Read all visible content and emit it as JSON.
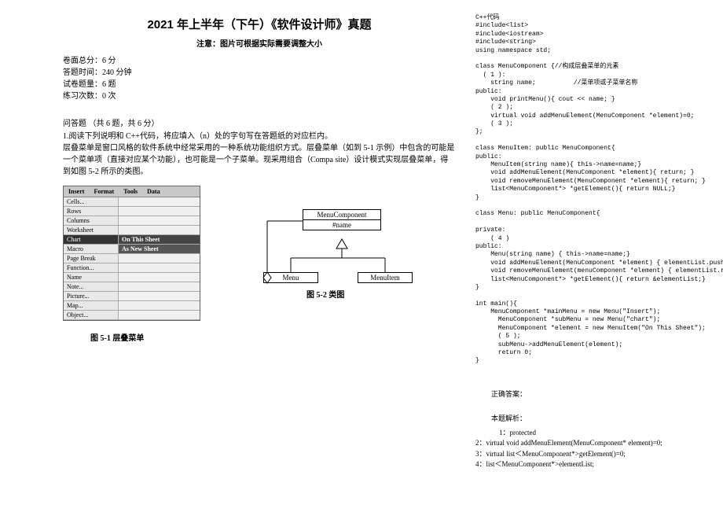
{
  "header": {
    "title": "2021 年上半年（下午）《软件设计师》真题",
    "subtitle": "注意：图片可根据实际需要调整大小"
  },
  "meta": {
    "total_score": "卷面总分：6 分",
    "time": "答题时间：240 分钟",
    "count": "试卷题量：6 题",
    "practice": "练习次数：0 次"
  },
  "question": {
    "heading": "问答题 （共 6 题，共 6 分）",
    "line1": "1.阅读下列说明和 C++代码，将应填入（n）处的字句写在答题纸的对应栏内。",
    "line2": "层叠菜单是窗口风格的软件系统中经常采用的一种系统功能组织方式。层叠菜单（如到 5-1 示例）中包含的可能是一个菜单项（直接对应某个功能），也可能是一个子菜单。现采用组合（Compa site）设计模式实现层叠菜单，得到如图 5-2 所示的类图。"
  },
  "menuWindow": {
    "menubar": [
      "Insert",
      "Format",
      "Tools",
      "Data"
    ],
    "rows": [
      {
        "left": "Cells...",
        "right": ""
      },
      {
        "left": "Rows",
        "right": ""
      },
      {
        "left": "Columns",
        "right": ""
      },
      {
        "left": "Worksheet",
        "right": ""
      },
      {
        "left": "Chart",
        "right": "On This Sheet",
        "highlight": true
      },
      {
        "left": "Macro",
        "right": "As New Sheet",
        "subheader": true
      },
      {
        "left": "Page Break",
        "right": ""
      },
      {
        "left": "Function...",
        "right": ""
      },
      {
        "left": "Name",
        "right": ""
      },
      {
        "left": "Note...",
        "right": ""
      },
      {
        "left": "Picture...",
        "right": ""
      },
      {
        "left": "Map...",
        "right": ""
      },
      {
        "left": "Object...",
        "right": ""
      }
    ],
    "caption": "图 5-1 层叠菜单"
  },
  "uml": {
    "parent": "MenuComponent",
    "parent_attr": "#name",
    "child1": "Menu",
    "child2": "MenuItem",
    "caption": "图 5-2 类图"
  },
  "code": {
    "lines": [
      "C++代码",
      "#include<list>",
      "#include<iostream>",
      "#include<string>",
      "using namespace std;",
      "",
      "class MenuComponent {//构成层叠菜单的元素",
      "  ( 1 ):",
      "    string name;          //菜单项或子菜单名称",
      "public:",
      "    void printMenu(){ cout << name; }",
      "    ( 2 );",
      "    virtual void addMenuElement(MenuComponent *element)=0;",
      "    ( 3 );",
      "};",
      "",
      "class MenuItem: public MenuComponent{",
      "public:",
      "    MenuItem(string name){ this->name=name;}",
      "    void addMenuElement(MenuComponent *element){ return; }",
      "    void removeMenuElement(MenuComponent *element){ return; }",
      "    list<MenuComponent*> *getElement(){ return NULL;}",
      "}",
      "",
      "class Menu: public MenuComponent{",
      "",
      "private:",
      "    ( 4 )",
      "public:",
      "    Menu(string name) { this->name=name;}",
      "    void addMenuElement(MenuComponent *element) { elementList.push_back(element);}",
      "    void removeMenuElement(menuComponent *element) { elementList.remove_back(element);}",
      "    list<MenuComponent*> *getElement(){ return &elementList;}",
      "}",
      "",
      "int main(){",
      "    MenuComponent *mainMenu = new Menu(\"Insert\");",
      "      MenuComponent *subMenu = new Menu(\"chart\");",
      "      MenuComponent *element = new MenuItem(\"On This Sheet\");",
      "      ( 5 );",
      "      subMenu->addMenuElement(element);",
      "      return 0;",
      "}"
    ]
  },
  "answer": {
    "correct_label": "正确答案：",
    "analysis_label": "本题解析：",
    "items": [
      "1：protected",
      "2：virtual void addMenuElement(MenuComponent* element)=0;",
      "3：virtual list＜MenuComponent*>getElement()=0;",
      "4：list＜MenuComponent*>elementList;"
    ]
  },
  "styling": {
    "bg": "#ffffff",
    "text": "#000000",
    "menu_bg": "#d9d9d9",
    "menu_highlight_bg": "#333333",
    "menu_highlight_text": "#ffffff",
    "border": "#000000"
  }
}
